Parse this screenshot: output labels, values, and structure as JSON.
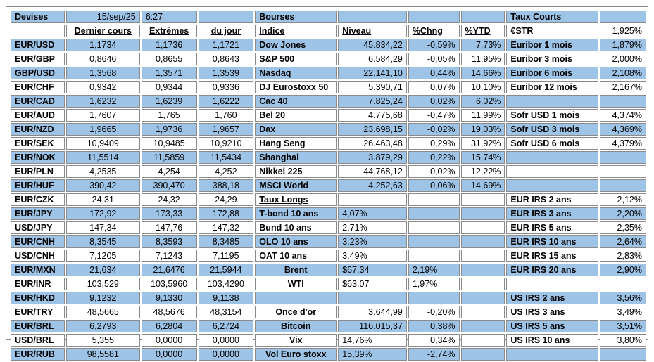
{
  "header": {
    "devises": "Devises",
    "date": "15/sep/25",
    "time": "6:27",
    "bourses": "Bourses",
    "taux_courts": "Taux Courts"
  },
  "subheader": {
    "dernier": "Dernier cours",
    "extremes": "Extrêmes",
    "dujour": "du jour",
    "indice": "Indice",
    "niveau": "Niveau",
    "chng": "%Chng",
    "ytd": "%YTD",
    "estr_label": "€STR",
    "estr_value": "1,925%"
  },
  "rows": [
    {
      "pair": "EUR/USD",
      "last": "1,1734",
      "high": "1,1736",
      "low": "1,1721",
      "mid": "Dow Jones",
      "niveau": "45.834,22",
      "chng": "-0,59%",
      "ytd": "7,73%",
      "rlabel": "Euribor 1 mois",
      "rvalue": "1,879%"
    },
    {
      "pair": "EUR/GBP",
      "last": "0,8646",
      "high": "0,8655",
      "low": "0,8643",
      "mid": "S&P 500",
      "niveau": "6.584,29",
      "chng": "-0,05%",
      "ytd": "11,95%",
      "rlabel": "Euribor 3 mois",
      "rvalue": "2,000%"
    },
    {
      "pair": "GBP/USD",
      "last": "1,3568",
      "high": "1,3571",
      "low": "1,3539",
      "mid": "Nasdaq",
      "niveau": "22.141,10",
      "chng": "0,44%",
      "ytd": "14,66%",
      "rlabel": "Euribor 6 mois",
      "rvalue": "2,108%"
    },
    {
      "pair": "EUR/CHF",
      "last": "0,9342",
      "high": "0,9344",
      "low": "0,9336",
      "mid": "DJ Eurostoxx 50",
      "niveau": "5.390,71",
      "chng": "0,07%",
      "ytd": "10,10%",
      "rlabel": "Euribor 12 mois",
      "rvalue": "2,167%"
    },
    {
      "pair": "EUR/CAD",
      "last": "1,6232",
      "high": "1,6239",
      "low": "1,6222",
      "mid": "Cac 40",
      "niveau": "7.825,24",
      "chng": "0,02%",
      "ytd": "6,02%",
      "rlabel": "",
      "rvalue": ""
    },
    {
      "pair": "EUR/AUD",
      "last": "1,7607",
      "high": "1,765",
      "low": "1,760",
      "mid": "Bel 20",
      "niveau": "4.775,68",
      "chng": "-0,47%",
      "ytd": "11,99%",
      "rlabel": "Sofr USD 1 mois",
      "rvalue": "4,374%"
    },
    {
      "pair": "EUR/NZD",
      "last": "1,9665",
      "high": "1,9736",
      "low": "1,9657",
      "mid": "Dax",
      "niveau": "23.698,15",
      "chng": "-0,02%",
      "ytd": "19,03%",
      "rlabel": "Sofr USD 3 mois",
      "rvalue": "4,369%"
    },
    {
      "pair": "EUR/SEK",
      "last": "10,9409",
      "high": "10,9485",
      "low": "10,9210",
      "mid": "Hang Seng",
      "niveau": "26.463,48",
      "chng": "0,29%",
      "ytd": "31,92%",
      "rlabel": "Sofr USD 6 mois",
      "rvalue": "4,379%"
    },
    {
      "pair": "EUR/NOK",
      "last": "11,5514",
      "high": "11,5859",
      "low": "11,5434",
      "mid": "Shanghai",
      "niveau": "3.879,29",
      "chng": "0,22%",
      "ytd": "15,74%",
      "rlabel": "",
      "rvalue": ""
    },
    {
      "pair": "EUR/PLN",
      "last": "4,2535",
      "high": "4,254",
      "low": "4,252",
      "mid": "Nikkei 225",
      "niveau": "44.768,12",
      "chng": "-0,02%",
      "ytd": "12,22%",
      "rlabel": "",
      "rvalue": ""
    },
    {
      "pair": "EUR/HUF",
      "last": "390,42",
      "high": "390,470",
      "low": "388,18",
      "mid": "MSCI World",
      "niveau": "4.252,63",
      "chng": "-0,06%",
      "ytd": "14,69%",
      "rlabel": "",
      "rvalue": ""
    },
    {
      "pair": "EUR/CZK",
      "last": "24,31",
      "high": "24,32",
      "low": "24,29",
      "mid": "Taux Longs",
      "niveau": "",
      "chng": "",
      "ytd": "",
      "rlabel": "EUR IRS 2 ans",
      "rvalue": "2,12%"
    },
    {
      "pair": "EUR/JPY",
      "last": "172,92",
      "high": "173,33",
      "low": "172,88",
      "mid": "T-bond 10 ans",
      "niveau": "4,07%",
      "chng": "",
      "ytd": "",
      "rlabel": "EUR IRS 3 ans",
      "rvalue": "2,20%"
    },
    {
      "pair": "USD/JPY",
      "last": "147,34",
      "high": "147,76",
      "low": "147,32",
      "mid": "Bund 10 ans",
      "niveau": "2,71%",
      "chng": "",
      "ytd": "",
      "rlabel": "EUR IRS 5 ans",
      "rvalue": "2,35%"
    },
    {
      "pair": "EUR/CNH",
      "last": "8,3545",
      "high": "8,3593",
      "low": "8,3485",
      "mid": "OLO 10 ans",
      "niveau": "3,23%",
      "chng": "",
      "ytd": "",
      "rlabel": "EUR IRS 10 ans",
      "rvalue": "2,64%"
    },
    {
      "pair": "USD/CNH",
      "last": "7,1205",
      "high": "7,1243",
      "low": "7,1195",
      "mid": "OAT 10 ans",
      "niveau": "3,49%",
      "chng": "",
      "ytd": "",
      "rlabel": "EUR IRS 15 ans",
      "rvalue": "2,83%"
    },
    {
      "pair": "EUR/MXN",
      "last": "21,634",
      "high": "21,6476",
      "low": "21,5944",
      "mid": "Brent",
      "niveau": "$67,34",
      "chng": "2,19%",
      "ytd": "",
      "rlabel": "EUR IRS 20 ans",
      "rvalue": "2,90%"
    },
    {
      "pair": "EUR/INR",
      "last": "103,529",
      "high": "103,5960",
      "low": "103,4290",
      "mid": "WTI",
      "niveau": "$63,07",
      "chng": "1,97%",
      "ytd": "",
      "rlabel": "",
      "rvalue": ""
    },
    {
      "pair": "EUR/HKD",
      "last": "9,1232",
      "high": "9,1330",
      "low": "9,1138",
      "mid": "",
      "niveau": "",
      "chng": "",
      "ytd": "",
      "rlabel": "US IRS 2 ans",
      "rvalue": "3,56%"
    },
    {
      "pair": "EUR/TRY",
      "last": "48,5665",
      "high": "48,5676",
      "low": "48,3154",
      "mid": "Once d'or",
      "niveau": "3.644,99",
      "chng": "-0,20%",
      "ytd": "",
      "rlabel": "US IRS 3 ans",
      "rvalue": "3,49%"
    },
    {
      "pair": "EUR/BRL",
      "last": "6,2793",
      "high": "6,2804",
      "low": "6,2724",
      "mid": "Bitcoin",
      "niveau": "116.015,37",
      "chng": "0,38%",
      "ytd": "",
      "rlabel": "US IRS 5 ans",
      "rvalue": "3,51%"
    },
    {
      "pair": "USD/BRL",
      "last": "5,355",
      "high": "0,0000",
      "low": "0,0000",
      "mid": "Vix",
      "niveau": "14,76%",
      "chng": "0,34%",
      "ytd": "",
      "rlabel": "US IRS 10 ans",
      "rvalue": "3,80%"
    },
    {
      "pair": "EUR/RUB",
      "last": "98,5581",
      "high": "0,0000",
      "low": "0,0000",
      "mid": "Vol Euro stoxx",
      "niveau": "15,39%",
      "chng": "-2,74%",
      "ytd": "",
      "rlabel": "",
      "rvalue": ""
    }
  ]
}
